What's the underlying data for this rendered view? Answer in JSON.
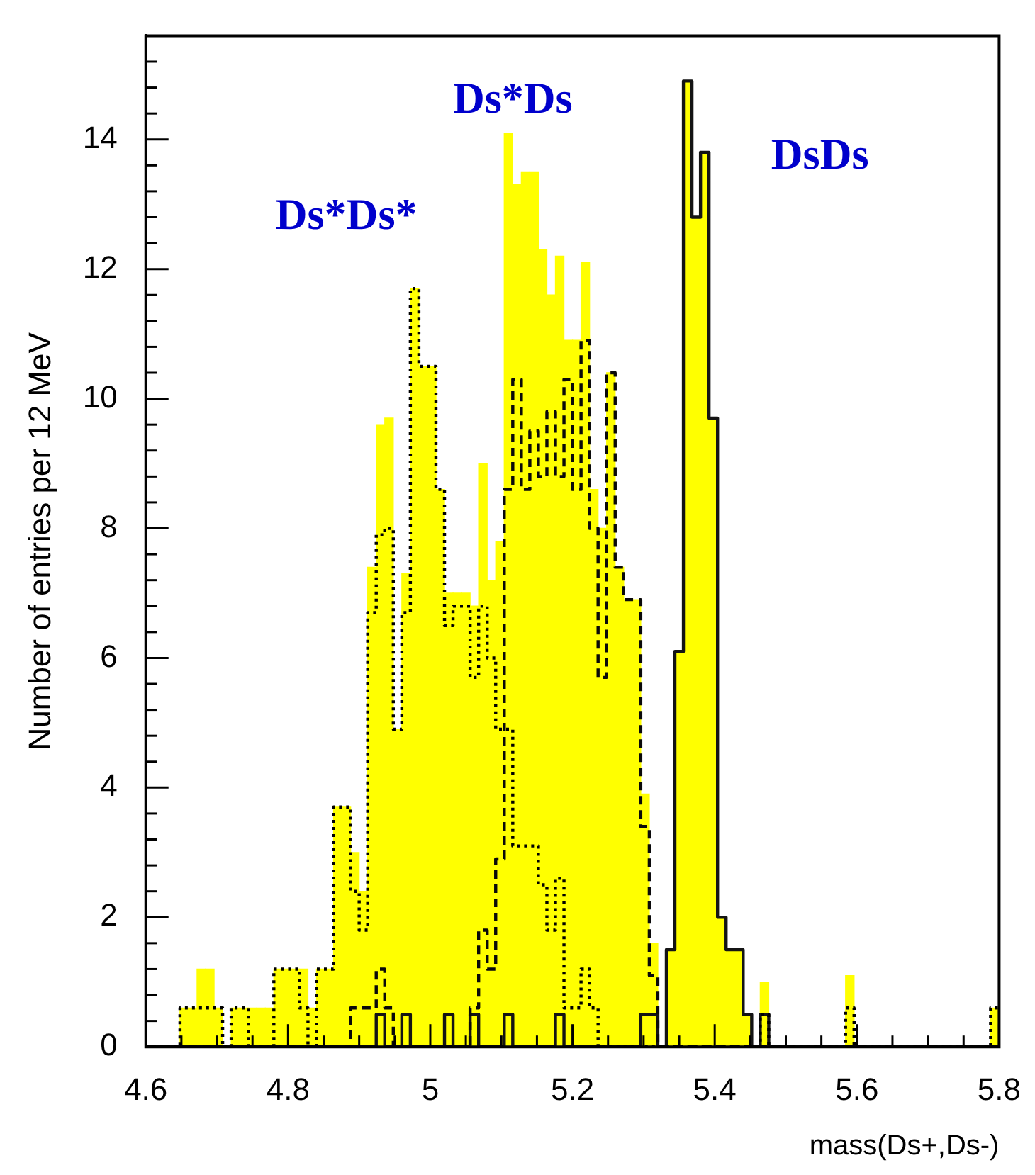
{
  "chart_data": {
    "type": "histogram",
    "xlabel": "mass(Ds+,Ds-)",
    "ylabel": "Number of entries per 12 MeV",
    "bins": [
      4.6,
      4.612,
      4.624,
      4.636,
      4.648,
      4.66,
      4.672,
      4.684,
      4.696,
      4.708,
      4.72,
      4.732,
      4.744,
      4.756,
      4.768,
      4.78,
      4.792,
      4.804,
      4.816,
      4.828,
      4.84,
      4.852,
      4.864,
      4.876,
      4.888,
      4.9,
      4.912,
      4.924,
      4.936,
      4.948,
      4.96,
      4.972,
      4.984,
      4.996,
      5.008,
      5.02,
      5.032,
      5.044,
      5.056,
      5.068,
      5.08,
      5.092,
      5.104,
      5.116,
      5.128,
      5.14,
      5.152,
      5.164,
      5.176,
      5.188,
      5.2,
      5.212,
      5.224,
      5.236,
      5.248,
      5.26,
      5.272,
      5.284,
      5.296,
      5.308,
      5.32,
      5.332,
      5.344,
      5.356,
      5.368,
      5.38,
      5.392,
      5.404,
      5.416,
      5.428,
      5.44,
      5.452,
      5.464,
      5.476,
      5.488,
      5.5,
      5.512,
      5.524,
      5.536,
      5.548,
      5.56,
      5.572,
      5.584,
      5.596,
      5.608,
      5.62,
      5.632,
      5.644,
      5.656,
      5.668,
      5.68,
      5.692,
      5.704,
      5.716,
      5.728,
      5.74,
      5.752,
      5.764,
      5.776,
      5.788,
      5.8
    ],
    "series": [
      {
        "color": "#ffff00",
        "values": [
          0,
          0,
          0,
          0,
          0.6,
          0.6,
          1.2,
          1.2,
          0.6,
          0,
          0.6,
          0.6,
          0.6,
          0.6,
          0.6,
          1.2,
          1.2,
          1.2,
          1.2,
          0.6,
          1.2,
          1.2,
          3.7,
          3.7,
          3.0,
          2.4,
          7.4,
          9.6,
          9.7,
          4.9,
          7.3,
          11.7,
          10.5,
          10.5,
          8.6,
          7.0,
          7.0,
          7.0,
          6.8,
          9.0,
          7.2,
          7.8,
          14.1,
          13.3,
          13.5,
          13.5,
          12.3,
          11.6,
          12.2,
          10.9,
          10.9,
          12.1,
          8.6,
          8.0,
          10.4,
          7.4,
          6.9,
          6.9,
          3.9,
          1.6,
          0,
          1.5,
          6.1,
          14.9,
          12.8,
          13.8,
          9.7,
          2.0,
          1.5,
          1.5,
          0.5,
          0,
          1.0,
          0,
          0,
          0,
          0,
          0,
          0,
          0,
          0,
          0,
          1.1,
          0,
          0,
          0,
          0,
          0,
          0,
          0,
          0,
          0,
          0,
          0,
          0,
          0,
          0,
          0,
          0,
          0.6
        ]
      },
      {
        "color": "#000000",
        "line_style": "dotted",
        "values": [
          0,
          0,
          0,
          0,
          0.6,
          0.6,
          0.6,
          0.6,
          0.6,
          0,
          0.6,
          0.6,
          0,
          0,
          0,
          1.2,
          1.2,
          1.2,
          0.6,
          0,
          1.2,
          1.2,
          3.7,
          3.7,
          2.4,
          1.8,
          6.7,
          7.9,
          8.0,
          4.9,
          6.7,
          11.7,
          10.5,
          10.5,
          8.6,
          6.5,
          6.8,
          6.8,
          5.7,
          6.8,
          6.0,
          4.9,
          4.9,
          3.1,
          3.1,
          3.1,
          2.5,
          1.8,
          2.6,
          0.6,
          0.6,
          1.2,
          0.6,
          0,
          0,
          0,
          0,
          0,
          0,
          0,
          0,
          0,
          0,
          0,
          0,
          0,
          0,
          0,
          0,
          0,
          0,
          0,
          0.5,
          0,
          0,
          0,
          0,
          0,
          0,
          0,
          0,
          0,
          0.6,
          0,
          0,
          0,
          0,
          0,
          0,
          0,
          0,
          0,
          0,
          0,
          0,
          0,
          0,
          0,
          0,
          0.6
        ]
      },
      {
        "color": "#0a0a0a",
        "line_style": "dashed",
        "values": [
          0,
          0,
          0,
          0,
          0,
          0,
          0,
          0,
          0,
          0,
          0,
          0,
          0,
          0,
          0,
          0,
          0,
          0,
          0,
          0,
          0,
          0,
          0,
          0,
          0.6,
          0.6,
          0.6,
          1.2,
          0.6,
          0,
          0,
          0,
          0,
          0,
          0,
          0,
          0,
          0,
          0.6,
          1.8,
          1.2,
          2.9,
          8.6,
          10.3,
          8.6,
          9.5,
          8.8,
          9.8,
          8.8,
          10.3,
          8.6,
          10.9,
          8.0,
          5.7,
          10.4,
          7.4,
          6.9,
          6.9,
          3.4,
          1.1,
          0,
          0,
          0,
          0,
          0,
          0,
          0,
          0,
          0,
          0,
          0,
          0,
          0,
          0,
          0,
          0,
          0,
          0,
          0,
          0,
          0,
          0,
          0,
          0,
          0,
          0,
          0,
          0,
          0,
          0,
          0,
          0,
          0,
          0,
          0,
          0,
          0,
          0,
          0,
          0
        ]
      },
      {
        "color": "#141414",
        "line_style": "solid",
        "values": [
          0,
          0,
          0,
          0,
          0,
          0,
          0,
          0,
          0,
          0,
          0,
          0,
          0,
          0,
          0,
          0,
          0,
          0,
          0,
          0,
          0,
          0,
          0,
          0,
          0,
          0,
          0,
          0.5,
          0,
          0,
          0.5,
          0,
          0,
          0,
          0,
          0.5,
          0,
          0,
          0.5,
          0,
          0,
          0,
          0.5,
          0,
          0,
          0,
          0,
          0,
          0.5,
          0,
          0,
          0,
          0,
          0,
          0,
          0,
          0,
          0,
          0.5,
          0.5,
          0,
          1.5,
          6.1,
          14.9,
          12.8,
          13.8,
          9.7,
          2.0,
          1.5,
          1.5,
          0.5,
          0,
          0.5,
          0,
          0,
          0,
          0,
          0,
          0,
          0,
          0,
          0,
          0,
          0,
          0,
          0,
          0,
          0,
          0,
          0,
          0,
          0,
          0,
          0,
          0,
          0,
          0,
          0,
          0,
          0
        ]
      }
    ],
    "xlim": [
      4.6,
      5.8
    ],
    "xticks": [
      4.6,
      {
        "value": 4.65,
        "label": null
      },
      {
        "value": 4.7,
        "label": null
      },
      {
        "value": 4.75,
        "label": null
      },
      4.8,
      {
        "value": 4.85,
        "label": null
      },
      {
        "value": 4.9,
        "label": null
      },
      {
        "value": 4.95,
        "label": null
      },
      5,
      {
        "value": 5.05,
        "label": null
      },
      {
        "value": 5.1,
        "label": null
      },
      {
        "value": 5.15,
        "label": null
      },
      5.2,
      {
        "value": 5.25,
        "label": null
      },
      {
        "value": 5.3,
        "label": null
      },
      {
        "value": 5.35,
        "label": null
      },
      5.4,
      {
        "value": 5.45,
        "label": null
      },
      {
        "value": 5.5,
        "label": null
      },
      {
        "value": 5.55,
        "label": null
      },
      5.6,
      {
        "value": 5.65,
        "label": null
      },
      {
        "value": 5.7,
        "label": null
      },
      {
        "value": 5.75,
        "label": null
      },
      5.8
    ],
    "ylim": [
      0,
      15.6
    ],
    "yticks": [
      0,
      {
        "value": 0.4,
        "label": null
      },
      {
        "value": 0.8,
        "label": null
      },
      {
        "value": 1.2,
        "label": null
      },
      {
        "value": 1.6,
        "label": null
      },
      2,
      {
        "value": 2.4,
        "label": null
      },
      {
        "value": 2.8,
        "label": null
      },
      {
        "value": 3.2,
        "label": null
      },
      {
        "value": 3.6,
        "label": null
      },
      4,
      {
        "value": 4.4,
        "label": null
      },
      {
        "value": 4.8,
        "label": null
      },
      {
        "value": 5.2,
        "label": null
      },
      {
        "value": 5.6,
        "label": null
      },
      6,
      {
        "value": 6.4,
        "label": null
      },
      {
        "value": 6.8,
        "label": null
      },
      {
        "value": 7.2,
        "label": null
      },
      {
        "value": 7.6,
        "label": null
      },
      8,
      {
        "value": 8.4,
        "label": null
      },
      {
        "value": 8.8,
        "label": null
      },
      {
        "value": 9.2,
        "label": null
      },
      {
        "value": 9.6,
        "label": null
      },
      10,
      {
        "value": 10.4,
        "label": null
      },
      {
        "value": 10.8,
        "label": null
      },
      {
        "value": 11.2,
        "label": null
      },
      {
        "value": 11.6,
        "label": null
      },
      12,
      {
        "value": 12.4,
        "label": null
      },
      {
        "value": 12.8,
        "label": null
      },
      {
        "value": 13.2,
        "label": null
      },
      {
        "value": 13.6,
        "label": null
      },
      14,
      {
        "value": 14.4,
        "label": null
      },
      {
        "value": 14.8,
        "label": null
      },
      {
        "value": 15.2,
        "label": null
      }
    ],
    "annotations": [
      "Ds*Ds*",
      "Ds*Ds",
      "DsDs"
    ],
    "grid": false,
    "legend": false
  }
}
